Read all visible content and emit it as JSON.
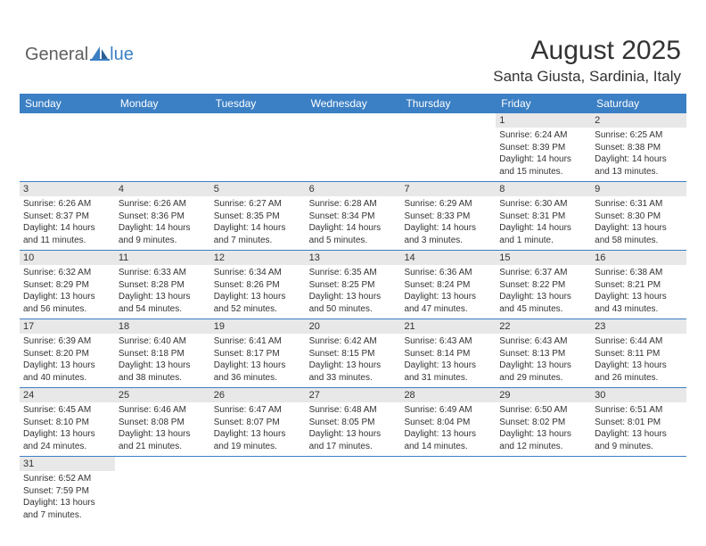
{
  "logo": {
    "text1": "General",
    "text2": "lue",
    "icon_color": "#3b7fc4"
  },
  "header": {
    "month_title": "August 2025",
    "location": "Santa Giusta, Sardinia, Italy"
  },
  "colors": {
    "header_blue": "#3b7fc4",
    "daybar_gray": "#e8e8e8",
    "text_dark": "#333333",
    "text_white": "#ffffff",
    "logo_gray": "#5f5f5f"
  },
  "day_headers": [
    "Sunday",
    "Monday",
    "Tuesday",
    "Wednesday",
    "Thursday",
    "Friday",
    "Saturday"
  ],
  "weeks": [
    [
      null,
      null,
      null,
      null,
      null,
      {
        "n": "1",
        "sr": "Sunrise: 6:24 AM",
        "ss": "Sunset: 8:39 PM",
        "dl": "Daylight: 14 hours and 15 minutes."
      },
      {
        "n": "2",
        "sr": "Sunrise: 6:25 AM",
        "ss": "Sunset: 8:38 PM",
        "dl": "Daylight: 14 hours and 13 minutes."
      }
    ],
    [
      {
        "n": "3",
        "sr": "Sunrise: 6:26 AM",
        "ss": "Sunset: 8:37 PM",
        "dl": "Daylight: 14 hours and 11 minutes."
      },
      {
        "n": "4",
        "sr": "Sunrise: 6:26 AM",
        "ss": "Sunset: 8:36 PM",
        "dl": "Daylight: 14 hours and 9 minutes."
      },
      {
        "n": "5",
        "sr": "Sunrise: 6:27 AM",
        "ss": "Sunset: 8:35 PM",
        "dl": "Daylight: 14 hours and 7 minutes."
      },
      {
        "n": "6",
        "sr": "Sunrise: 6:28 AM",
        "ss": "Sunset: 8:34 PM",
        "dl": "Daylight: 14 hours and 5 minutes."
      },
      {
        "n": "7",
        "sr": "Sunrise: 6:29 AM",
        "ss": "Sunset: 8:33 PM",
        "dl": "Daylight: 14 hours and 3 minutes."
      },
      {
        "n": "8",
        "sr": "Sunrise: 6:30 AM",
        "ss": "Sunset: 8:31 PM",
        "dl": "Daylight: 14 hours and 1 minute."
      },
      {
        "n": "9",
        "sr": "Sunrise: 6:31 AM",
        "ss": "Sunset: 8:30 PM",
        "dl": "Daylight: 13 hours and 58 minutes."
      }
    ],
    [
      {
        "n": "10",
        "sr": "Sunrise: 6:32 AM",
        "ss": "Sunset: 8:29 PM",
        "dl": "Daylight: 13 hours and 56 minutes."
      },
      {
        "n": "11",
        "sr": "Sunrise: 6:33 AM",
        "ss": "Sunset: 8:28 PM",
        "dl": "Daylight: 13 hours and 54 minutes."
      },
      {
        "n": "12",
        "sr": "Sunrise: 6:34 AM",
        "ss": "Sunset: 8:26 PM",
        "dl": "Daylight: 13 hours and 52 minutes."
      },
      {
        "n": "13",
        "sr": "Sunrise: 6:35 AM",
        "ss": "Sunset: 8:25 PM",
        "dl": "Daylight: 13 hours and 50 minutes."
      },
      {
        "n": "14",
        "sr": "Sunrise: 6:36 AM",
        "ss": "Sunset: 8:24 PM",
        "dl": "Daylight: 13 hours and 47 minutes."
      },
      {
        "n": "15",
        "sr": "Sunrise: 6:37 AM",
        "ss": "Sunset: 8:22 PM",
        "dl": "Daylight: 13 hours and 45 minutes."
      },
      {
        "n": "16",
        "sr": "Sunrise: 6:38 AM",
        "ss": "Sunset: 8:21 PM",
        "dl": "Daylight: 13 hours and 43 minutes."
      }
    ],
    [
      {
        "n": "17",
        "sr": "Sunrise: 6:39 AM",
        "ss": "Sunset: 8:20 PM",
        "dl": "Daylight: 13 hours and 40 minutes."
      },
      {
        "n": "18",
        "sr": "Sunrise: 6:40 AM",
        "ss": "Sunset: 8:18 PM",
        "dl": "Daylight: 13 hours and 38 minutes."
      },
      {
        "n": "19",
        "sr": "Sunrise: 6:41 AM",
        "ss": "Sunset: 8:17 PM",
        "dl": "Daylight: 13 hours and 36 minutes."
      },
      {
        "n": "20",
        "sr": "Sunrise: 6:42 AM",
        "ss": "Sunset: 8:15 PM",
        "dl": "Daylight: 13 hours and 33 minutes."
      },
      {
        "n": "21",
        "sr": "Sunrise: 6:43 AM",
        "ss": "Sunset: 8:14 PM",
        "dl": "Daylight: 13 hours and 31 minutes."
      },
      {
        "n": "22",
        "sr": "Sunrise: 6:43 AM",
        "ss": "Sunset: 8:13 PM",
        "dl": "Daylight: 13 hours and 29 minutes."
      },
      {
        "n": "23",
        "sr": "Sunrise: 6:44 AM",
        "ss": "Sunset: 8:11 PM",
        "dl": "Daylight: 13 hours and 26 minutes."
      }
    ],
    [
      {
        "n": "24",
        "sr": "Sunrise: 6:45 AM",
        "ss": "Sunset: 8:10 PM",
        "dl": "Daylight: 13 hours and 24 minutes."
      },
      {
        "n": "25",
        "sr": "Sunrise: 6:46 AM",
        "ss": "Sunset: 8:08 PM",
        "dl": "Daylight: 13 hours and 21 minutes."
      },
      {
        "n": "26",
        "sr": "Sunrise: 6:47 AM",
        "ss": "Sunset: 8:07 PM",
        "dl": "Daylight: 13 hours and 19 minutes."
      },
      {
        "n": "27",
        "sr": "Sunrise: 6:48 AM",
        "ss": "Sunset: 8:05 PM",
        "dl": "Daylight: 13 hours and 17 minutes."
      },
      {
        "n": "28",
        "sr": "Sunrise: 6:49 AM",
        "ss": "Sunset: 8:04 PM",
        "dl": "Daylight: 13 hours and 14 minutes."
      },
      {
        "n": "29",
        "sr": "Sunrise: 6:50 AM",
        "ss": "Sunset: 8:02 PM",
        "dl": "Daylight: 13 hours and 12 minutes."
      },
      {
        "n": "30",
        "sr": "Sunrise: 6:51 AM",
        "ss": "Sunset: 8:01 PM",
        "dl": "Daylight: 13 hours and 9 minutes."
      }
    ],
    [
      {
        "n": "31",
        "sr": "Sunrise: 6:52 AM",
        "ss": "Sunset: 7:59 PM",
        "dl": "Daylight: 13 hours and 7 minutes."
      },
      null,
      null,
      null,
      null,
      null,
      null
    ]
  ]
}
